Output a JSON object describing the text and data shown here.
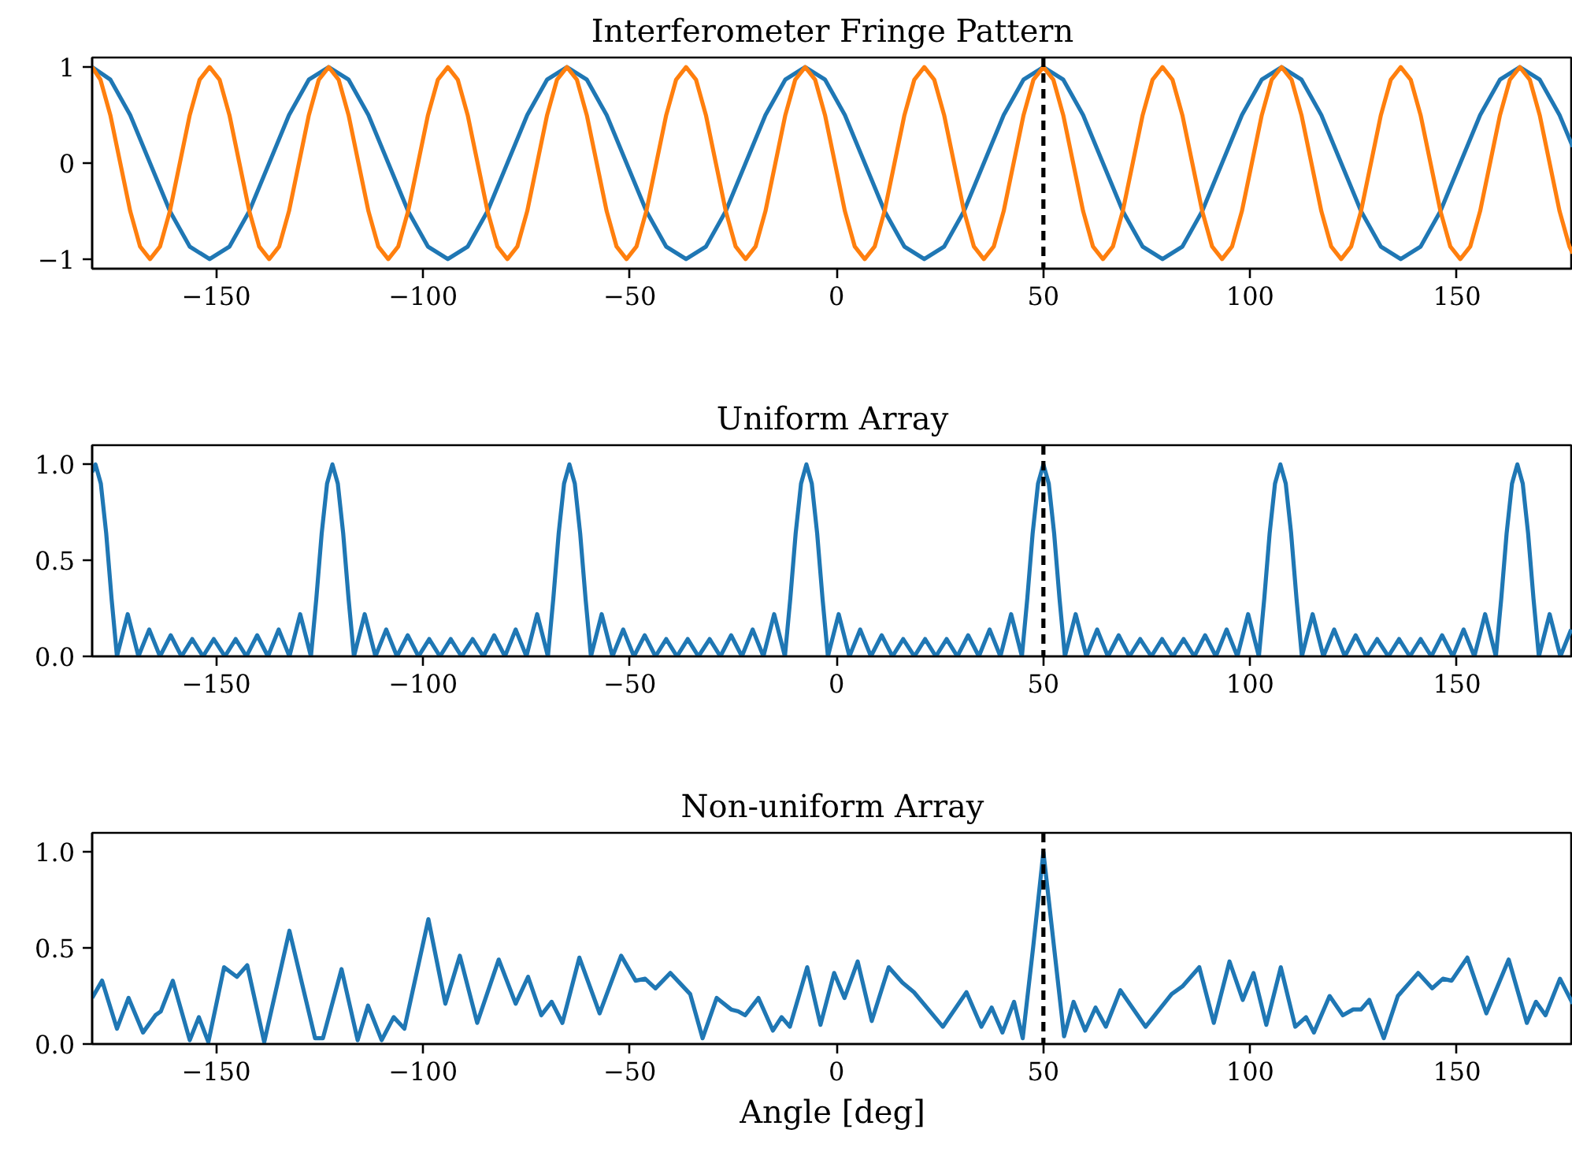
{
  "chart_data": [
    {
      "type": "line",
      "title": "Interferometer Fringe Pattern",
      "xlim": [
        -180,
        178
      ],
      "ylim": [
        -1.1,
        1.1
      ],
      "xticks": [
        {
          "value": -150,
          "label": "−150"
        },
        {
          "value": -100,
          "label": "−100"
        },
        {
          "value": -50,
          "label": "−50"
        },
        0,
        50,
        100,
        150
      ],
      "yticks": [
        {
          "value": -1,
          "label": "−1"
        },
        0,
        1
      ],
      "ref_lines": [
        {
          "axis": "x",
          "value": 50,
          "color": "#000000",
          "line_style": "dashed"
        }
      ],
      "series": [
        {
          "color": "#1f77b4",
          "x": [
            -180,
            -175.6,
            -170.8,
            -166,
            -161.2,
            -156.4,
            -151.6,
            -146.8,
            -142,
            -137.2,
            -132.4,
            -127.6,
            -122.8,
            -118,
            -113.2,
            -108.4,
            -103.6,
            -98.8,
            -94,
            -89.2,
            -84.4,
            -79.6,
            -74.8,
            -70,
            -65.2,
            -60.4,
            -55.6,
            -50.8,
            -46,
            -41.2,
            -36.4,
            -31.6,
            -26.8,
            -22,
            -17.2,
            -12.4,
            -7.6,
            -2.8,
            2,
            6.8,
            11.6,
            16.4,
            21.2,
            26,
            30.8,
            35.6,
            40.4,
            45.2,
            50,
            54.8,
            59.6,
            64.4,
            69.2,
            74,
            78.8,
            83.6,
            88.4,
            93.2,
            98,
            102.8,
            107.6,
            112.4,
            117.2,
            122,
            126.8,
            131.6,
            136.4,
            141.2,
            146,
            150.8,
            155.6,
            160.4,
            165.2,
            170,
            174.8,
            178
          ],
          "values": [
            1,
            0.87,
            0.5,
            0,
            -0.5,
            -0.87,
            -1,
            -0.87,
            -0.5,
            0,
            0.5,
            0.87,
            1,
            0.87,
            0.5,
            0,
            -0.5,
            -0.87,
            -1,
            -0.87,
            -0.5,
            0,
            0.5,
            0.87,
            1,
            0.87,
            0.5,
            0,
            -0.5,
            -0.87,
            -1,
            -0.87,
            -0.5,
            0,
            0.5,
            0.87,
            1,
            0.87,
            0.5,
            0,
            -0.5,
            -0.87,
            -1,
            -0.87,
            -0.5,
            0,
            0.5,
            0.87,
            1,
            0.87,
            0.5,
            0,
            -0.5,
            -0.87,
            -1,
            -0.87,
            -0.5,
            0,
            0.5,
            0.87,
            1,
            0.87,
            0.5,
            0,
            -0.5,
            -0.87,
            -1,
            -0.87,
            -0.5,
            0,
            0.5,
            0.87,
            1,
            0.87,
            0.5,
            0.17
          ]
        },
        {
          "color": "#ff7f0e",
          "x": [
            -180,
            -178,
            -175.6,
            -173.2,
            -170.8,
            -168.4,
            -166,
            -163.6,
            -161.2,
            -158.8,
            -156.4,
            -154,
            -151.6,
            -149.2,
            -146.8,
            -144.4,
            -142,
            -139.6,
            -137.2,
            -134.8,
            -132.4,
            -130,
            -127.6,
            -125.2,
            -122.8,
            -120.4,
            -118,
            -115.6,
            -113.2,
            -110.8,
            -108.4,
            -106,
            -103.6,
            -101.2,
            -98.8,
            -96.4,
            -94,
            -91.6,
            -89.2,
            -86.8,
            -84.4,
            -82,
            -79.6,
            -77.2,
            -74.8,
            -72.4,
            -70,
            -67.6,
            -65.2,
            -62.8,
            -60.4,
            -58,
            -55.6,
            -53.2,
            -50.8,
            -48.4,
            -46,
            -43.6,
            -41.2,
            -38.8,
            -36.4,
            -34,
            -31.6,
            -29.2,
            -26.8,
            -24.4,
            -22,
            -19.6,
            -17.2,
            -14.8,
            -12.4,
            -10,
            -7.6,
            -5.2,
            -2.8,
            -0.4,
            2,
            4.4,
            6.8,
            9.2,
            11.6,
            14,
            16.4,
            18.8,
            21.2,
            23.6,
            26,
            28.4,
            30.8,
            33.2,
            35.6,
            38,
            40.4,
            42.8,
            45.2,
            47.6,
            50,
            52.4,
            54.8,
            57.2,
            59.6,
            62,
            64.4,
            66.8,
            69.2,
            71.6,
            74,
            76.4,
            78.8,
            81.2,
            83.6,
            86,
            88.4,
            90.8,
            93.2,
            95.6,
            98,
            100.4,
            102.8,
            105.2,
            107.6,
            110,
            112.4,
            114.8,
            117.2,
            119.6,
            122,
            124.4,
            126.8,
            129.2,
            131.6,
            134,
            136.4,
            138.8,
            141.2,
            143.6,
            146,
            148.4,
            150.8,
            153.2,
            155.6,
            158,
            160.4,
            162.8,
            165.2,
            167.6,
            170,
            172.4,
            174.8,
            177.2,
            178
          ],
          "values": [
            1,
            0.87,
            0.5,
            0,
            -0.5,
            -0.87,
            -1,
            -0.87,
            -0.5,
            0,
            0.5,
            0.87,
            1,
            0.87,
            0.5,
            0,
            -0.5,
            -0.87,
            -1,
            -0.87,
            -0.5,
            0,
            0.5,
            0.87,
            1,
            0.87,
            0.5,
            0,
            -0.5,
            -0.87,
            -1,
            -0.87,
            -0.5,
            0,
            0.5,
            0.87,
            1,
            0.87,
            0.5,
            0,
            -0.5,
            -0.87,
            -1,
            -0.87,
            -0.5,
            0,
            0.5,
            0.87,
            1,
            0.87,
            0.5,
            0,
            -0.5,
            -0.87,
            -1,
            -0.87,
            -0.5,
            0,
            0.5,
            0.87,
            1,
            0.87,
            0.5,
            0,
            -0.5,
            -0.87,
            -1,
            -0.87,
            -0.5,
            0,
            0.5,
            0.87,
            1,
            0.87,
            0.5,
            0,
            -0.5,
            -0.87,
            -1,
            -0.87,
            -0.5,
            0,
            0.5,
            0.87,
            1,
            0.87,
            0.5,
            0,
            -0.5,
            -0.87,
            -1,
            -0.87,
            -0.5,
            0,
            0.5,
            0.87,
            1,
            0.87,
            0.5,
            0,
            -0.5,
            -0.87,
            -1,
            -0.87,
            -0.5,
            0,
            0.5,
            0.87,
            1,
            0.87,
            0.5,
            0,
            -0.5,
            -0.87,
            -1,
            -0.87,
            -0.5,
            0,
            0.5,
            0.87,
            1,
            0.87,
            0.5,
            0,
            -0.5,
            -0.87,
            -1,
            -0.87,
            -0.5,
            0,
            0.5,
            0.87,
            1,
            0.87,
            0.5,
            0,
            -0.5,
            -0.87,
            -1,
            -0.87,
            -0.5,
            0,
            0.5,
            0.87,
            1,
            0.87,
            0.5,
            0,
            -0.5,
            -0.87,
            -0.94
          ]
        }
      ]
    },
    {
      "type": "line",
      "title": "Uniform Array",
      "xlim": [
        -180,
        178
      ],
      "ylim": [
        0,
        1.1
      ],
      "xticks": [
        {
          "value": -150,
          "label": "−150"
        },
        {
          "value": -100,
          "label": "−100"
        },
        {
          "value": -50,
          "label": "−50"
        },
        0,
        50,
        100,
        150
      ],
      "yticks": [
        {
          "value": 0,
          "label": "0.0"
        },
        0.5,
        {
          "value": 1,
          "label": "1.0"
        }
      ],
      "ref_lines": [
        {
          "axis": "x",
          "value": 50,
          "color": "#000000",
          "line_style": "dashed"
        }
      ],
      "series": [
        {
          "color": "#1f77b4",
          "x": [
            -180,
            -179.2,
            -177.9,
            -176.6,
            -175.3,
            -174.0,
            -171.4,
            -168.8,
            -166.2,
            -163.6,
            -161.0,
            -158.4,
            -155.8,
            -153.2,
            -150.6,
            -147.9,
            -145.3,
            -142.7,
            -140.1,
            -137.5,
            -134.9,
            -132.3,
            -129.7,
            -127.1,
            -125.8,
            -124.5,
            -123.2,
            -121.9,
            -120.6,
            -119.3,
            -118.0,
            -116.7,
            -114.1,
            -111.5,
            -108.9,
            -106.3,
            -103.7,
            -101.1,
            -98.5,
            -95.9,
            -93.3,
            -90.7,
            -88.0,
            -85.4,
            -82.8,
            -80.2,
            -77.6,
            -75.0,
            -72.4,
            -69.8,
            -68.5,
            -67.2,
            -65.9,
            -64.6,
            -63.3,
            -62.0,
            -60.7,
            -59.4,
            -56.8,
            -54.2,
            -51.6,
            -49.0,
            -46.4,
            -43.8,
            -41.2,
            -38.6,
            -36.0,
            -33.4,
            -30.7,
            -28.1,
            -25.5,
            -22.9,
            -20.3,
            -17.7,
            -15.1,
            -12.5,
            -11.2,
            -9.9,
            -8.6,
            -7.3,
            -6.0,
            -4.7,
            -3.4,
            -2.1,
            0.5,
            3.1,
            5.7,
            8.3,
            10.9,
            13.5,
            16.1,
            18.8,
            21.4,
            24.0,
            26.6,
            29.2,
            31.8,
            34.4,
            37.0,
            39.6,
            42.2,
            44.8,
            46.1,
            47.4,
            48.7,
            50,
            51.3,
            52.6,
            53.9,
            55.2,
            57.8,
            60.4,
            63.0,
            65.6,
            68.2,
            70.8,
            73.4,
            76.1,
            78.7,
            81.3,
            83.9,
            86.5,
            89.1,
            91.7,
            94.3,
            96.9,
            99.5,
            102.1,
            103.4,
            104.7,
            106.0,
            107.3,
            108.6,
            109.9,
            111.2,
            112.5,
            115.1,
            117.7,
            120.3,
            122.9,
            125.5,
            128.1,
            130.7,
            133.4,
            136.0,
            138.6,
            141.2,
            143.8,
            146.4,
            149.0,
            151.6,
            154.2,
            156.8,
            159.4,
            160.7,
            162.0,
            163.3,
            164.6,
            165.9,
            167.2,
            168.5,
            169.8,
            172.4,
            175.0,
            177.6
          ],
          "values": [
            0.96,
            1,
            0.9,
            0.64,
            0.3,
            0,
            0.22,
            0,
            0.14,
            0,
            0.11,
            0,
            0.09,
            0,
            0.09,
            0,
            0.09,
            0,
            0.11,
            0,
            0.14,
            0,
            0.22,
            0,
            0.3,
            0.64,
            0.9,
            1,
            0.9,
            0.64,
            0.3,
            0,
            0.22,
            0,
            0.14,
            0,
            0.11,
            0,
            0.09,
            0,
            0.09,
            0,
            0.09,
            0,
            0.11,
            0,
            0.14,
            0,
            0.22,
            0,
            0.3,
            0.64,
            0.9,
            1,
            0.9,
            0.64,
            0.3,
            0,
            0.22,
            0,
            0.14,
            0,
            0.11,
            0,
            0.09,
            0,
            0.09,
            0,
            0.09,
            0,
            0.11,
            0,
            0.14,
            0,
            0.22,
            0,
            0.3,
            0.64,
            0.9,
            1,
            0.9,
            0.64,
            0.3,
            0,
            0.22,
            0,
            0.14,
            0,
            0.11,
            0,
            0.09,
            0,
            0.09,
            0,
            0.09,
            0,
            0.11,
            0,
            0.14,
            0,
            0.22,
            0,
            0.3,
            0.64,
            0.9,
            1,
            0.9,
            0.64,
            0.3,
            0,
            0.22,
            0,
            0.14,
            0,
            0.11,
            0,
            0.09,
            0,
            0.09,
            0,
            0.09,
            0,
            0.11,
            0,
            0.14,
            0,
            0.22,
            0,
            0.3,
            0.64,
            0.9,
            1,
            0.9,
            0.64,
            0.3,
            0,
            0.22,
            0,
            0.14,
            0,
            0.11,
            0,
            0.09,
            0,
            0.09,
            0,
            0.09,
            0,
            0.11,
            0,
            0.14,
            0,
            0.22,
            0,
            0.3,
            0.64,
            0.9,
            1,
            0.9,
            0.64,
            0.3,
            0,
            0.22,
            0,
            0.14
          ]
        }
      ]
    },
    {
      "type": "line",
      "title": "Non-uniform Array",
      "xlabel": "Angle [deg]",
      "xlim": [
        -180,
        178
      ],
      "ylim": [
        0,
        1.1
      ],
      "xticks": [
        {
          "value": -150,
          "label": "−150"
        },
        {
          "value": -100,
          "label": "−100"
        },
        {
          "value": -50,
          "label": "−50"
        },
        0,
        50,
        100,
        150
      ],
      "yticks": [
        {
          "value": 0,
          "label": "0.0"
        },
        0.5,
        {
          "value": 1,
          "label": "1.0"
        }
      ],
      "ref_lines": [
        {
          "axis": "x",
          "value": 50,
          "color": "#000000",
          "line_style": "dashed"
        }
      ],
      "series": [
        {
          "color": "#1f77b4",
          "x": [
            -180,
            -177.6,
            -174.0,
            -171.2,
            -167.7,
            -164.7,
            -163.4,
            -160.5,
            -156.4,
            -154.2,
            -151.9,
            -148.1,
            -145.0,
            -142.5,
            -138.4,
            -132.3,
            -126.1,
            -124.2,
            -119.7,
            -115.8,
            -113.3,
            -110.0,
            -107.1,
            -104.5,
            -98.7,
            -94.6,
            -91.1,
            -86.9,
            -81.7,
            -77.6,
            -74.6,
            -71.4,
            -68.9,
            -66.3,
            -62.2,
            -57.3,
            -52.1,
            -48.6,
            -46.3,
            -43.8,
            -40.2,
            -35.4,
            -32.4,
            -29.0,
            -25.5,
            -23.8,
            -22.1,
            -18.9,
            -15.4,
            -13.3,
            -11.3,
            -7.1,
            -3.9,
            -0.6,
            1.9,
            5.1,
            8.5,
            12.6,
            15.9,
            18.7,
            25.7,
            31.4,
            35.0,
            37.5,
            40.1,
            42.9,
            45.0,
            47.5,
            50.0,
            52.6,
            55.0,
            57.3,
            60.1,
            62.6,
            65.1,
            68.6,
            74.7,
            81.0,
            83.6,
            87.7,
            91.2,
            95.0,
            98.2,
            100.8,
            103.9,
            107.4,
            110.9,
            113.5,
            115.4,
            119.2,
            122.4,
            124.9,
            126.8,
            128.8,
            132.3,
            135.7,
            140.6,
            144.0,
            146.6,
            148.7,
            152.5,
            157.1,
            162.5,
            166.9,
            169.1,
            171.4,
            174.9,
            178
          ],
          "values": [
            0.24,
            0.33,
            0.08,
            0.24,
            0.06,
            0.15,
            0.17,
            0.33,
            0.02,
            0.14,
            0.01,
            0.4,
            0.35,
            0.41,
            0.01,
            0.59,
            0.03,
            0.03,
            0.39,
            0.02,
            0.2,
            0.02,
            0.14,
            0.08,
            0.65,
            0.21,
            0.46,
            0.11,
            0.44,
            0.21,
            0.35,
            0.15,
            0.22,
            0.11,
            0.45,
            0.16,
            0.46,
            0.33,
            0.34,
            0.29,
            0.37,
            0.26,
            0.03,
            0.24,
            0.18,
            0.17,
            0.15,
            0.24,
            0.07,
            0.14,
            0.09,
            0.4,
            0.1,
            0.37,
            0.24,
            0.43,
            0.12,
            0.4,
            0.32,
            0.27,
            0.09,
            0.27,
            0.09,
            0.19,
            0.06,
            0.22,
            0.03,
            0.5,
            1.0,
            0.5,
            0.04,
            0.22,
            0.07,
            0.19,
            0.09,
            0.28,
            0.09,
            0.26,
            0.3,
            0.4,
            0.11,
            0.43,
            0.23,
            0.37,
            0.1,
            0.4,
            0.09,
            0.14,
            0.06,
            0.25,
            0.15,
            0.18,
            0.18,
            0.23,
            0.03,
            0.25,
            0.37,
            0.29,
            0.34,
            0.33,
            0.45,
            0.16,
            0.44,
            0.11,
            0.22,
            0.15,
            0.34,
            0.21
          ]
        }
      ]
    }
  ]
}
